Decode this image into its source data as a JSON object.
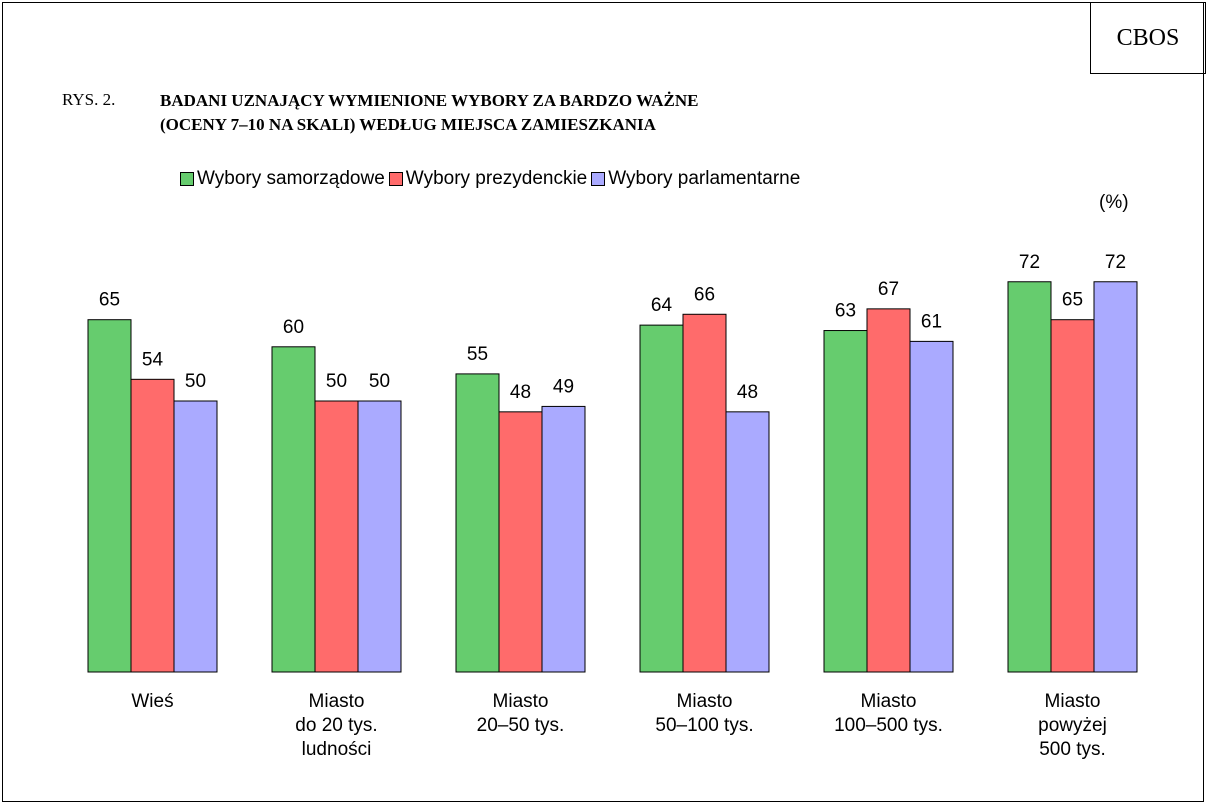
{
  "chart_data": {
    "type": "bar",
    "badge": "CBOS",
    "figure_label": "RYS. 2.",
    "title": "BADANI UZNAJĄCY WYMIENIONE WYBORY ZA BARDZO WAŻNE\n(OCENY 7–10 NA SKALI) WEDŁUG MIEJSCA ZAMIESZKANIA",
    "unit_label": "(%)",
    "categories": [
      "Wieś",
      "Miasto\ndo 20 tys.\nludności",
      "Miasto\n20–50 tys.",
      "Miasto\n50–100 tys.",
      "Miasto\n100–500 tys.",
      "Miasto\npowyżej\n500 tys."
    ],
    "series": [
      {
        "name": "Wybory samorządowe",
        "color": "#66cc6e",
        "values": [
          65,
          60,
          55,
          64,
          63,
          72
        ]
      },
      {
        "name": "Wybory prezydenckie",
        "color": "#ff6b6b",
        "values": [
          54,
          50,
          48,
          66,
          67,
          65
        ]
      },
      {
        "name": "Wybory parlamentarne",
        "color": "#aaaaff",
        "values": [
          50,
          50,
          49,
          48,
          61,
          72
        ]
      }
    ]
  }
}
